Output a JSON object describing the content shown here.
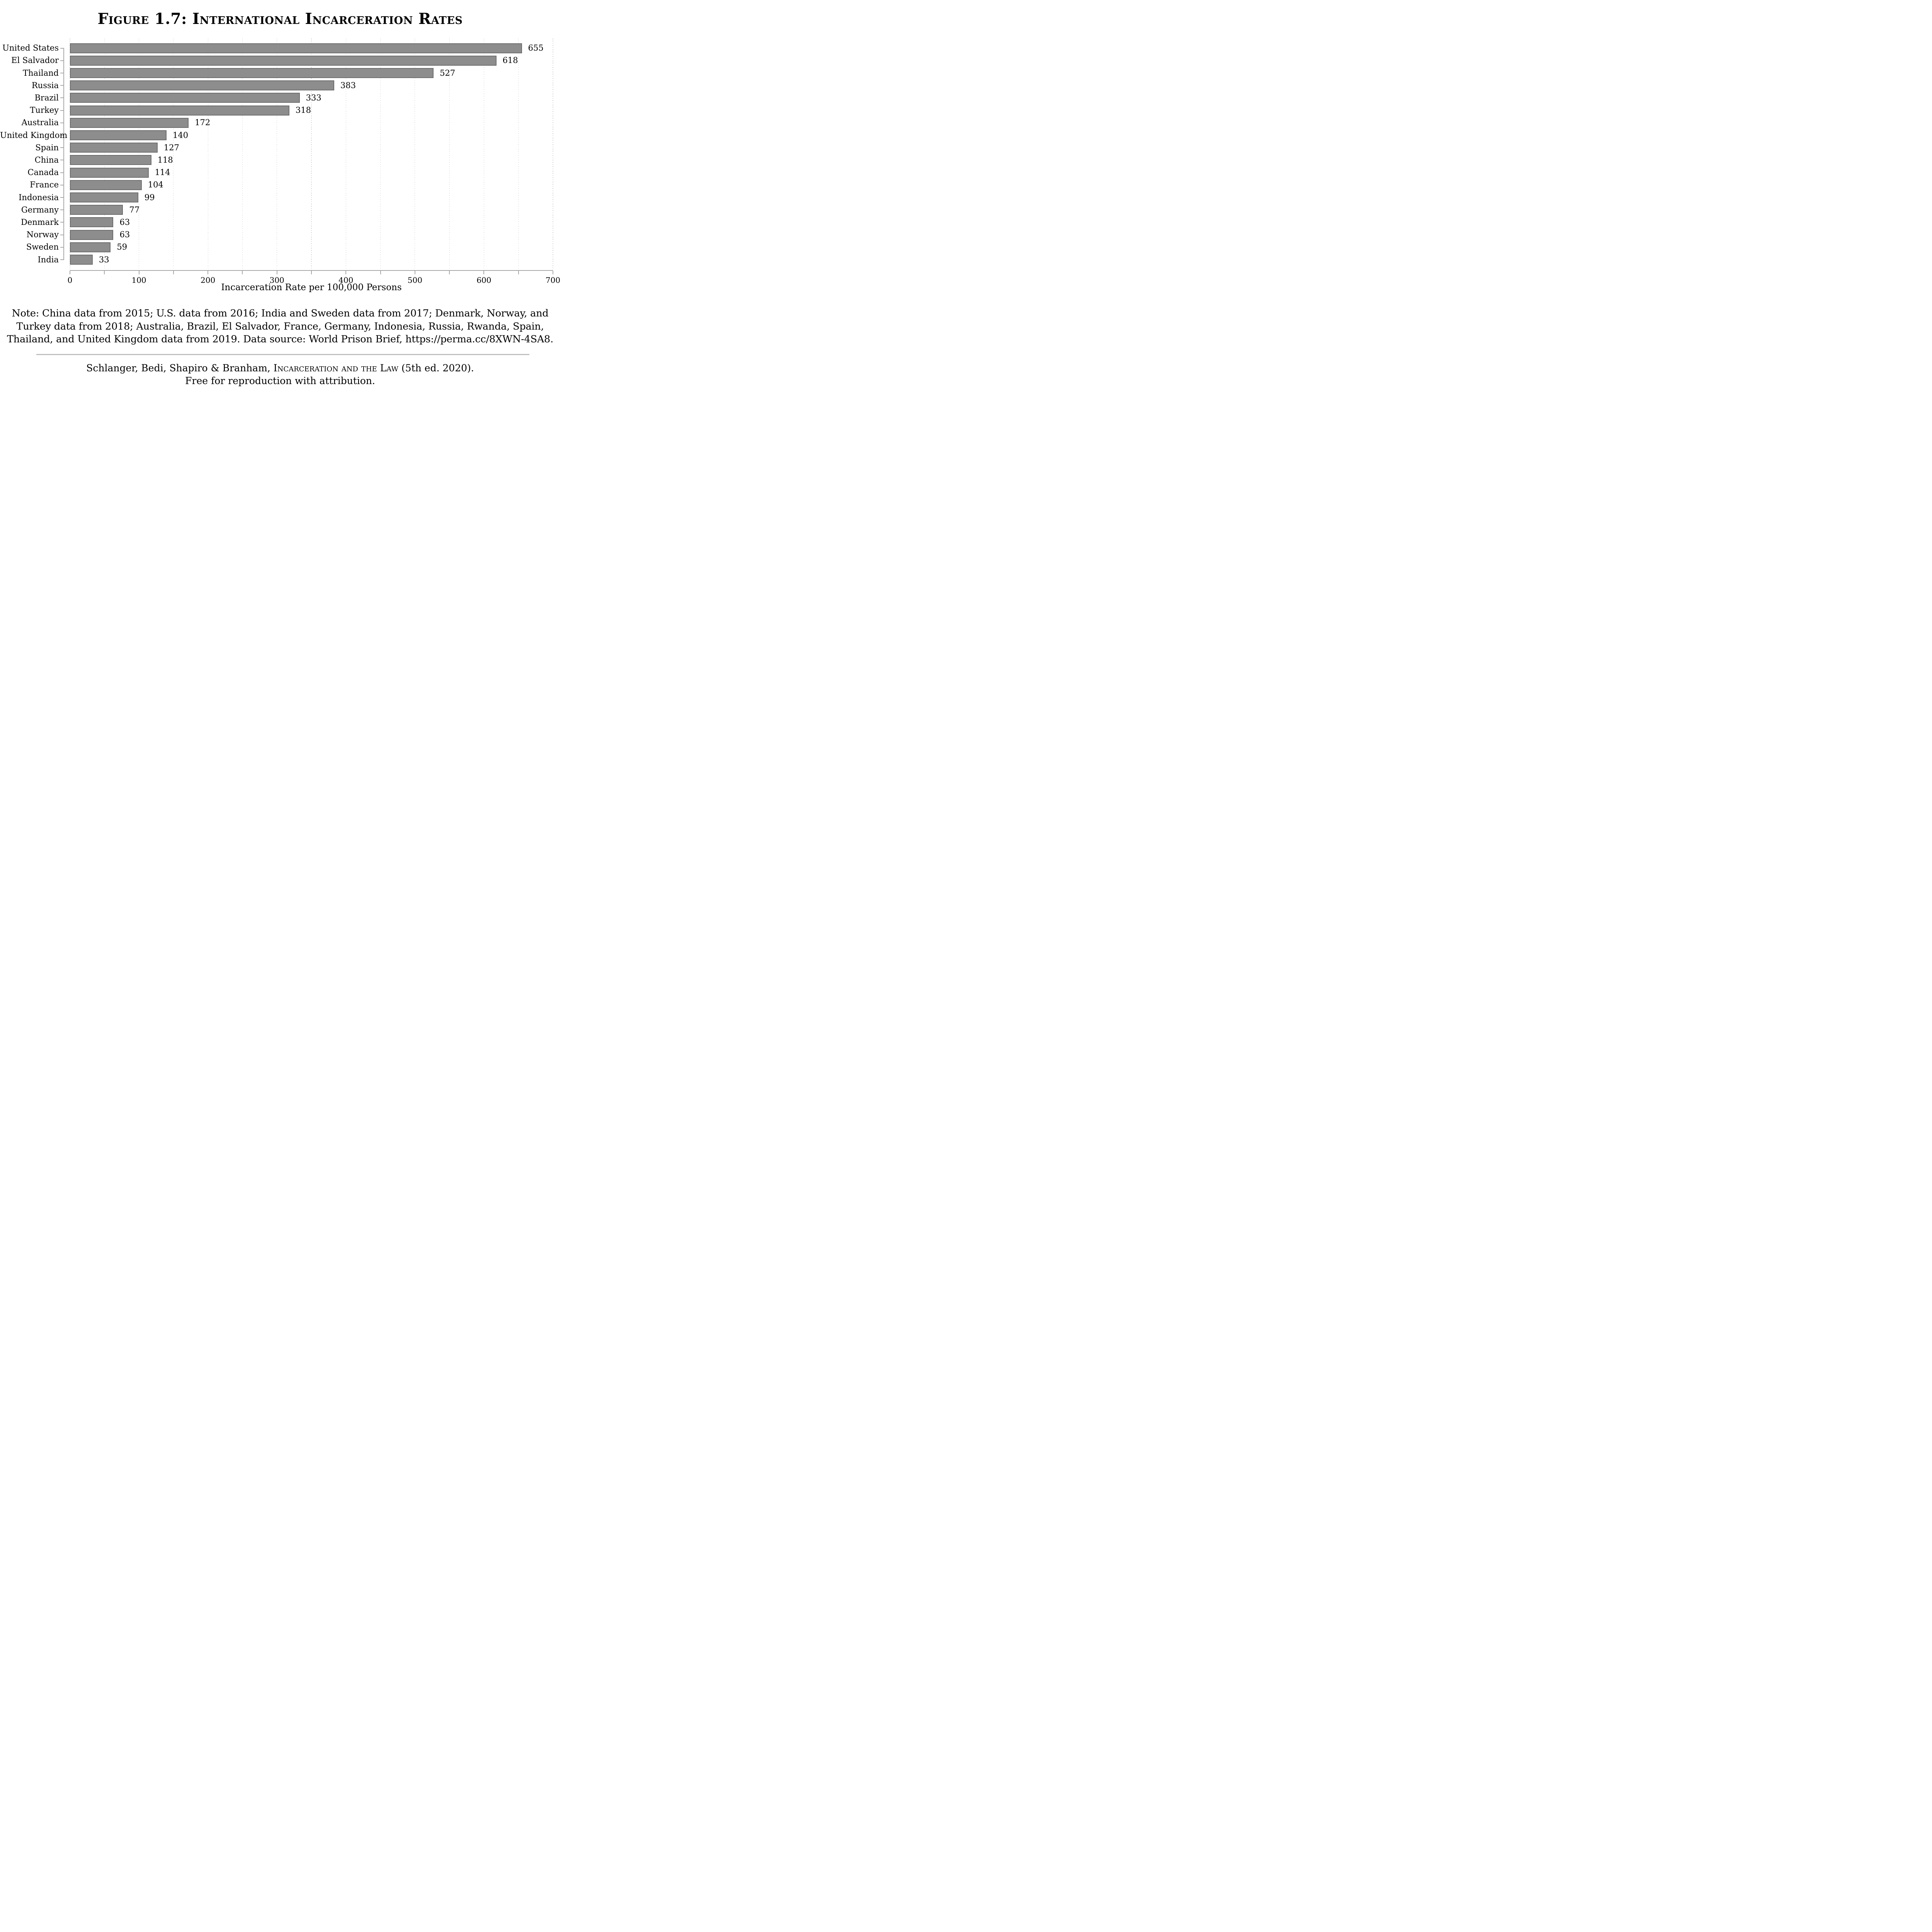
{
  "title": "Figure 1.7: International Incarceration Rates",
  "chart_data": {
    "type": "bar",
    "orientation": "horizontal",
    "categories": [
      "United States",
      "El Salvador",
      "Thailand",
      "Russia",
      "Brazil",
      "Turkey",
      "Australia",
      "United Kingdom",
      "Spain",
      "China",
      "Canada",
      "France",
      "Indonesia",
      "Germany",
      "Denmark",
      "Norway",
      "Sweden",
      "India"
    ],
    "values": [
      655,
      618,
      527,
      383,
      333,
      318,
      172,
      140,
      127,
      118,
      114,
      104,
      99,
      77,
      63,
      63,
      59,
      33
    ],
    "title": "Figure 1.7: International Incarceration Rates",
    "xlabel": "Incarceration Rate per 100,000 Persons",
    "ylabel": "",
    "xlim": [
      0,
      700
    ],
    "xtick_labels": [
      0,
      100,
      200,
      300,
      400,
      500,
      600,
      700
    ],
    "minor_tick_step": 50,
    "gridlines": "dotted vertical lines every 50 units",
    "legend": "none",
    "value_labels_shown": true,
    "bar_fill_color": "#8d8d8d",
    "bar_border_color": "#6e6e6e",
    "axis_color": "#a9a9a9",
    "grid_color": "#b9b9b9"
  },
  "note_lines": [
    "Note: China data from 2015; U.S. data from 2016; India and Sweden data from 2017; Denmark, Norway, and",
    "Turkey data from 2018; Australia, Brazil, El Salvador, France, Germany, Indonesia, Russia, Rwanda, Spain,",
    "Thailand, and United Kingdom data from 2019. Data source: World Prison Brief, https://perma.cc/8XWN-4SA8."
  ],
  "citation": {
    "authors": "Schlanger, Bedi, Shapiro & Branham, ",
    "book_title": "Incarceration and the Law",
    "edition": " (5th ed. 2020).",
    "license": "Free for reproduction with attribution."
  }
}
